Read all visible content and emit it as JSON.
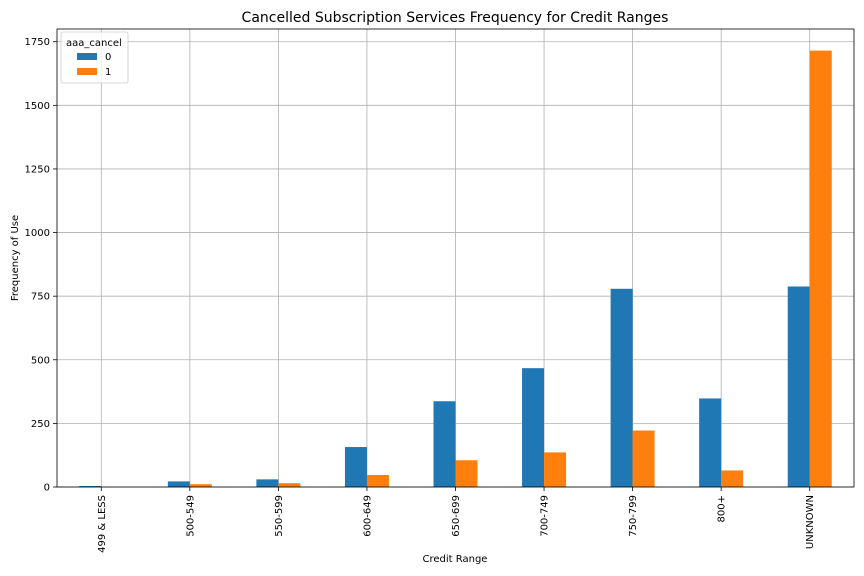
{
  "chart_data": {
    "type": "bar",
    "title": "Cancelled Subscription Services Frequency for Credit Ranges",
    "xlabel": "Credit Range",
    "ylabel": "Frequency of Use",
    "categories": [
      "499 & LESS",
      "500-549",
      "550-599",
      "600-649",
      "650-699",
      "700-749",
      "750-799",
      "800+",
      "UNKNOWN"
    ],
    "series": [
      {
        "name": "0",
        "color": "#1f77b4",
        "values": [
          4,
          22,
          30,
          157,
          337,
          467,
          779,
          348,
          788
        ]
      },
      {
        "name": "1",
        "color": "#ff7f0e",
        "values": [
          0,
          11,
          15,
          47,
          105,
          136,
          222,
          65,
          1715
        ]
      }
    ],
    "ylim": [
      0,
      1800
    ],
    "yticks": [
      0,
      250,
      500,
      750,
      1000,
      1250,
      1500,
      1750
    ],
    "grid": true,
    "legend": {
      "title": "aaa_cancel",
      "position": "top-left"
    }
  }
}
